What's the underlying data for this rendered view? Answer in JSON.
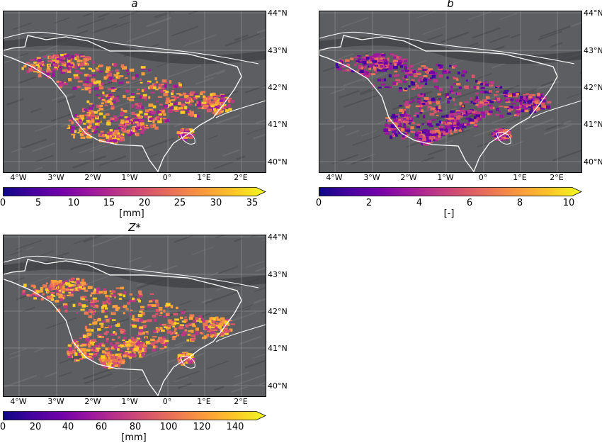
{
  "panels": [
    {
      "title": "a",
      "unit": "[mm]",
      "lat_labels": [
        "44°N",
        "43°N",
        "42°N",
        "41°N",
        "40°N"
      ],
      "lon_labels": [
        "4°W",
        "3°W",
        "2°W",
        "1°W",
        "0°",
        "1°E",
        "2°E"
      ],
      "colorbar_ticks": [
        "0",
        "5",
        "10",
        "15",
        "20",
        "25",
        "30",
        "35"
      ],
      "colorbar_range": [
        0,
        35
      ]
    },
    {
      "title": "b",
      "unit": "[-]",
      "lat_labels": [
        "44°N",
        "43°N",
        "42°N",
        "41°N",
        "40°N"
      ],
      "lon_labels": [
        "4°W",
        "3°W",
        "2°W",
        "1°W",
        "0°",
        "1°E",
        "2°E"
      ],
      "colorbar_ticks": [
        "0",
        "2",
        "4",
        "6",
        "8",
        "10"
      ],
      "colorbar_range": [
        0,
        10
      ]
    },
    {
      "title": "Z*",
      "unit": "[mm]",
      "lat_labels": [
        "44°N",
        "43°N",
        "42°N",
        "41°N",
        "40°N"
      ],
      "lon_labels": [
        "4°W",
        "3°W",
        "2°W",
        "1°W",
        "0°",
        "1°E",
        "2°E"
      ],
      "colorbar_ticks": [
        "0",
        "20",
        "40",
        "60",
        "80",
        "100",
        "120",
        "140"
      ],
      "colorbar_range": [
        0,
        150
      ]
    }
  ],
  "colormap": "plasma",
  "colors": {
    "background_relief": "#5d5e61",
    "border_lines": "#ffffff",
    "gridlines": "#9a9a9a"
  }
}
